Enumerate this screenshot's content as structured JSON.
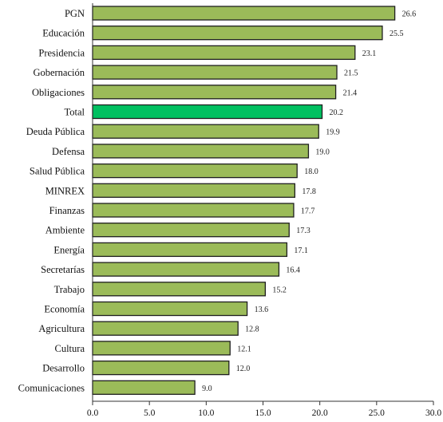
{
  "chart_data": {
    "type": "bar",
    "orientation": "horizontal",
    "categories": [
      "PGN",
      "Educación",
      "Presidencia",
      "Gobernación",
      "Obligaciones",
      "Total",
      "Deuda Pública",
      "Defensa",
      "Salud Pública",
      "MINREX",
      "Finanzas",
      "Ambiente",
      "Energía",
      "Secretarías",
      "Trabajo",
      "Economía",
      "Agricultura",
      "Cultura",
      "Desarrollo",
      "Comunicaciones"
    ],
    "values": [
      26.6,
      25.5,
      23.1,
      21.5,
      21.4,
      20.2,
      19.9,
      19.0,
      18.0,
      17.8,
      17.7,
      17.3,
      17.1,
      16.4,
      15.2,
      13.6,
      12.8,
      12.1,
      12.0,
      9.0
    ],
    "value_labels": [
      "26.6",
      "25.5",
      "23.1",
      "21.5",
      "21.4",
      "20.2",
      "19.9",
      "19.0",
      "18.0",
      "17.8",
      "17.7",
      "17.3",
      "17.1",
      "16.4",
      "15.2",
      "13.6",
      "12.8",
      "12.1",
      "12.0",
      "9.0"
    ],
    "highlight_category": "Total",
    "xlim": [
      0,
      30
    ],
    "xticks": [
      "0.0",
      "5.0",
      "10.0",
      "15.0",
      "20.0",
      "25.0",
      "30.0"
    ],
    "title": "",
    "xlabel": "",
    "ylabel": "",
    "grid": false,
    "colors": {
      "bar": "#9bbb59",
      "highlight": "#00c060",
      "edge": "#1f1f1f"
    }
  }
}
